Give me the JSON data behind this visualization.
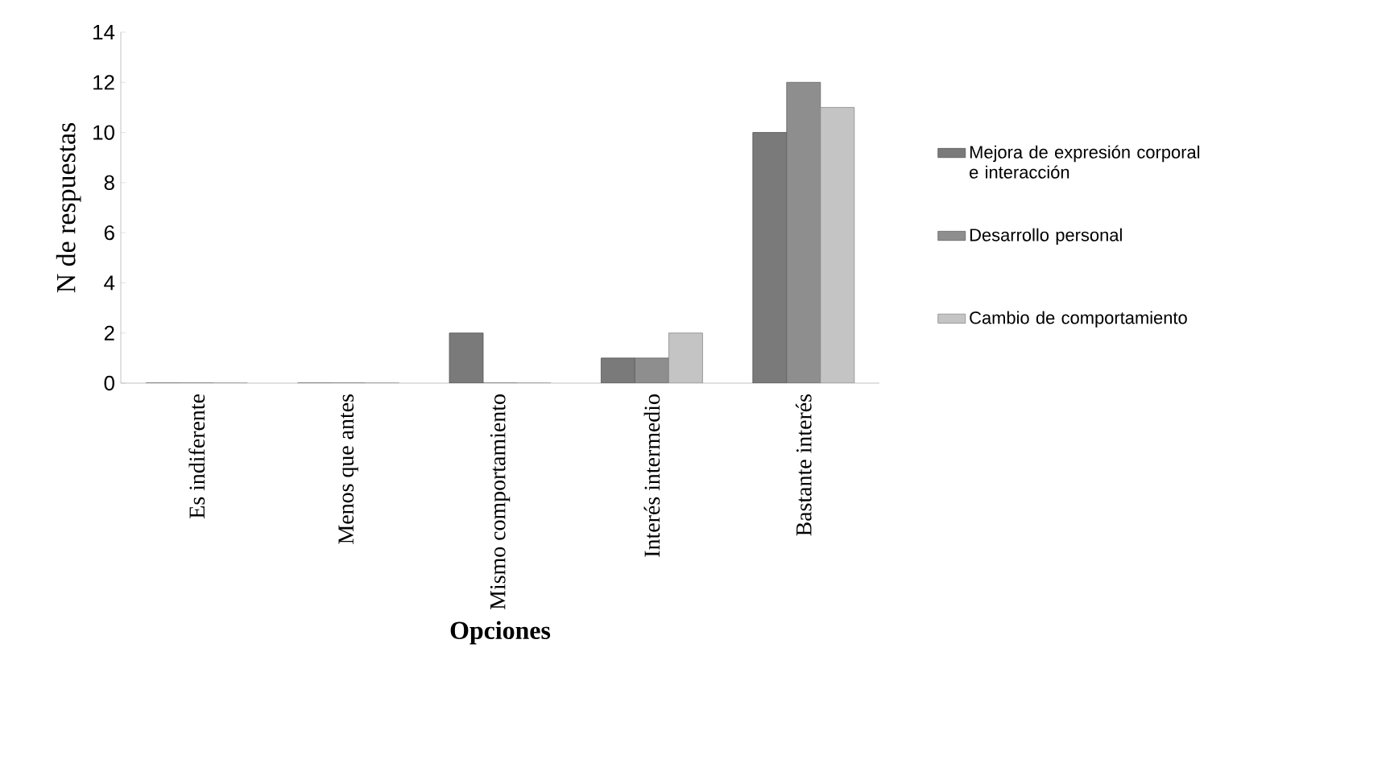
{
  "chart_data": {
    "type": "bar",
    "xlabel": "Opciones",
    "ylabel": "N de respuestas",
    "categories": [
      "Es indiferente",
      "Menos que antes",
      "Mismo comportamiento",
      "Interés intermedio",
      "Bastante interés"
    ],
    "series": [
      {
        "name": "Mejora de expresión corporal e interacción",
        "color": "#7a7a7a",
        "values": [
          0,
          0,
          2,
          1,
          10
        ]
      },
      {
        "name": "Desarrollo personal",
        "color": "#8e8e8e",
        "values": [
          0,
          0,
          0,
          1,
          12
        ]
      },
      {
        "name": "Cambio de comportamiento",
        "color": "#c4c4c4",
        "values": [
          0,
          0,
          0,
          2,
          11
        ]
      }
    ],
    "ylim": [
      0,
      14
    ],
    "yticks": [
      0,
      2,
      4,
      6,
      8,
      10,
      12,
      14
    ],
    "grid": false,
    "legend": "right"
  }
}
